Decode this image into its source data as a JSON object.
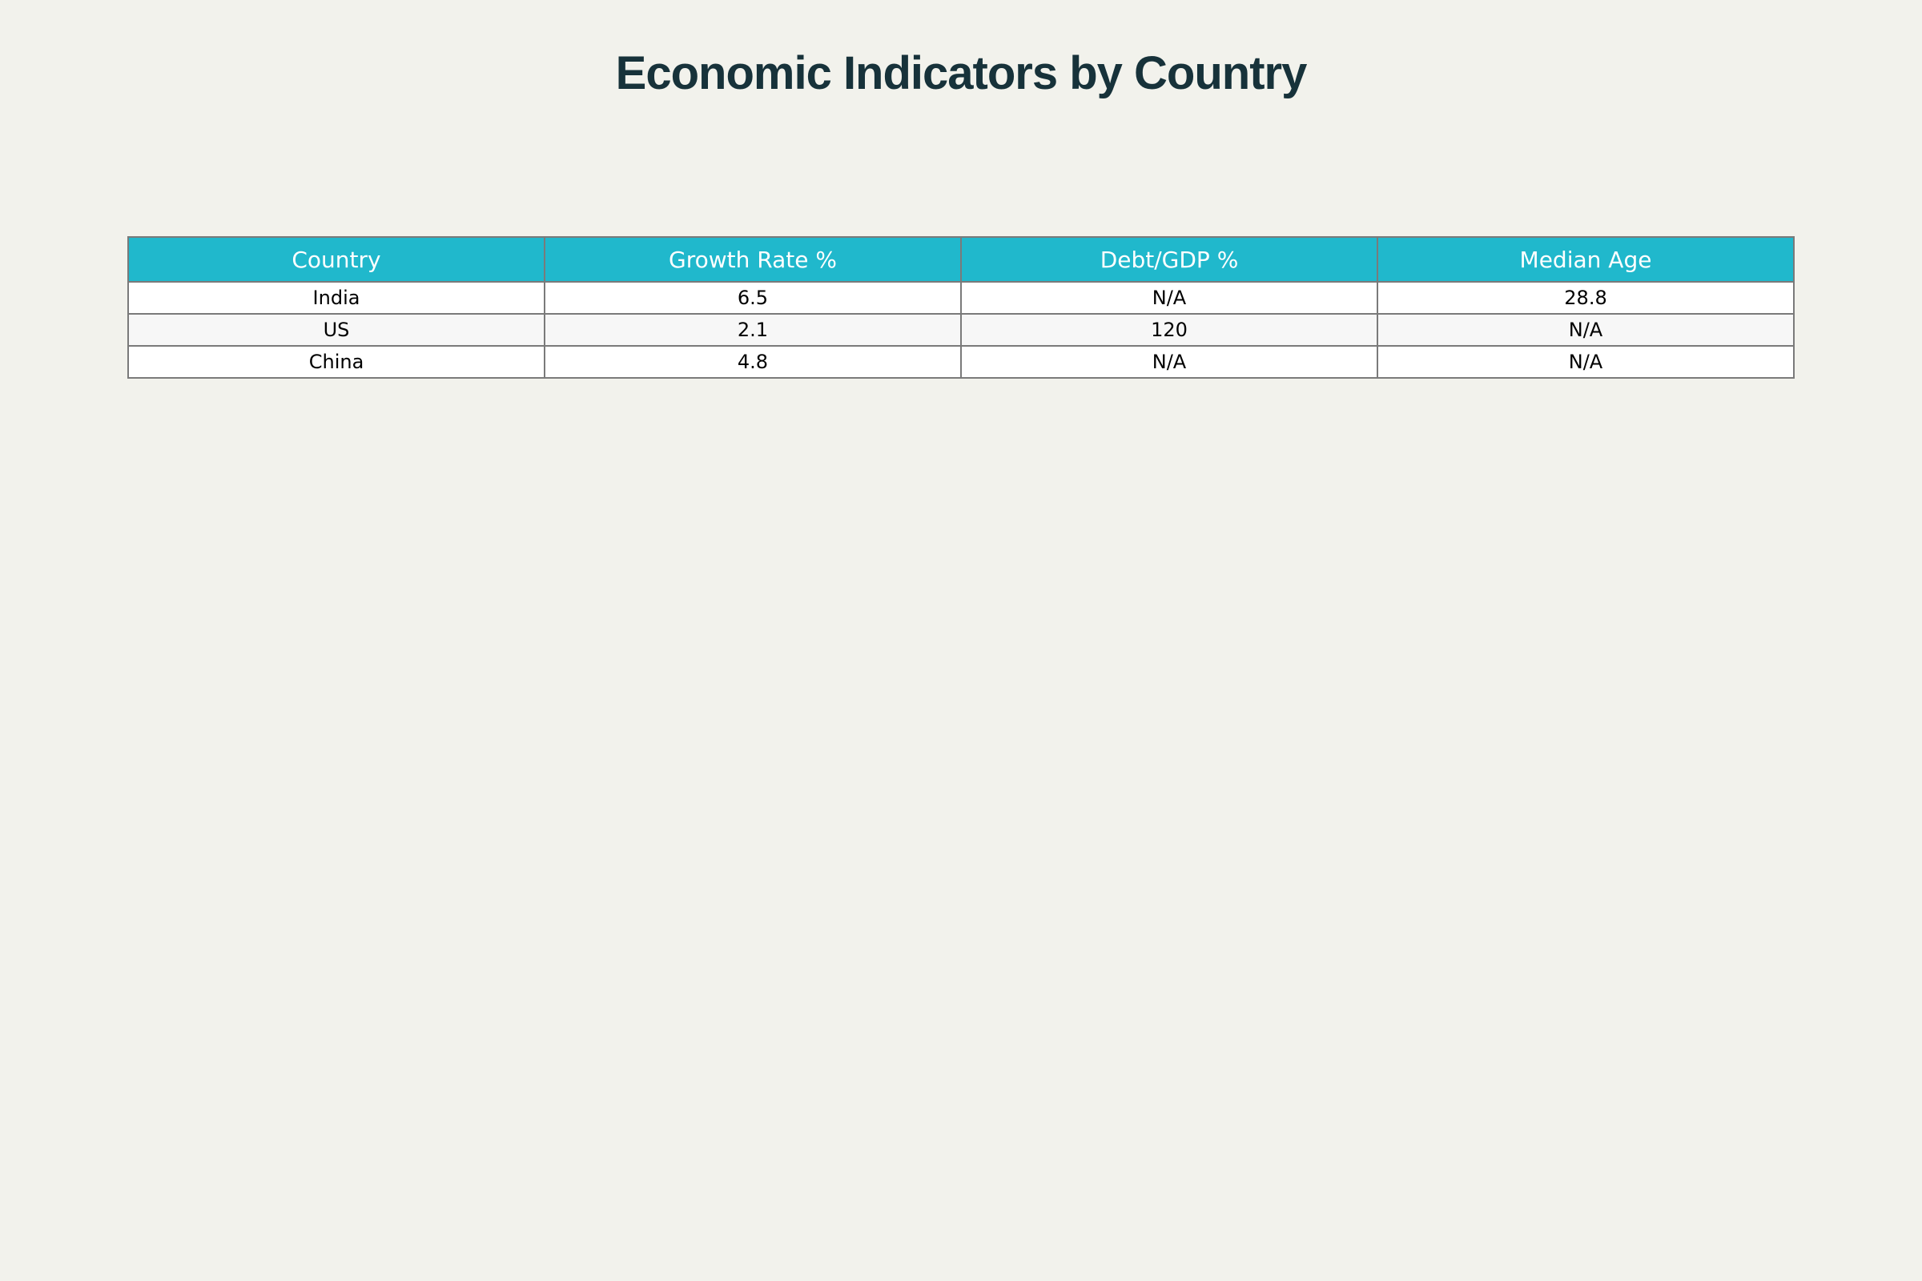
{
  "chart_data": {
    "type": "table",
    "title": "Economic Indicators by Country",
    "columns": [
      "Country",
      "Growth Rate %",
      "Debt/GDP %",
      "Median Age"
    ],
    "rows": [
      [
        "India",
        "6.5",
        "N/A",
        "28.8"
      ],
      [
        "US",
        "2.1",
        "120",
        "N/A"
      ],
      [
        "China",
        "4.8",
        "N/A",
        "N/A"
      ]
    ],
    "colors": {
      "header_background": "#20b8cc",
      "header_text": "#ffffff",
      "page_background": "#f2f2ec",
      "title_text": "#17323a",
      "alt_row_background": "#f7f7f7"
    }
  }
}
